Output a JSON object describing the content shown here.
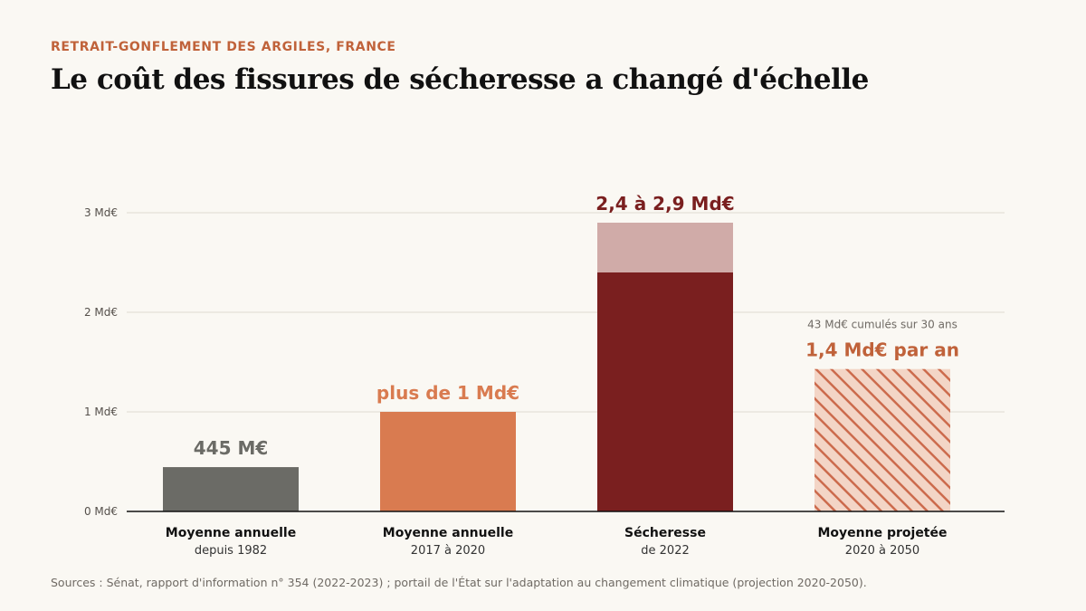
{
  "header": {
    "kicker": "RETRAIT-GONFLEMENT DES ARGILES, FRANCE",
    "title": "Le coût des fissures de sécheresse a changé d'échelle"
  },
  "footer": {
    "source": "Sources : Sénat, rapport d'information n° 354 (2022-2023) ; portail de l'État sur l'adaptation au changement climatique (projection 2020-2050)."
  },
  "chart_data": {
    "type": "bar",
    "ylim": [
      0,
      3
    ],
    "yticks": [
      {
        "value": 0,
        "label": "0 Md€"
      },
      {
        "value": 1,
        "label": "1 Md€"
      },
      {
        "value": 2,
        "label": "2 Md€"
      },
      {
        "value": 3,
        "label": "3 Md€"
      }
    ],
    "grid": true,
    "unit": "Md€",
    "categories": [
      {
        "line1": "Moyenne annuelle",
        "line2": "depuis 1982"
      },
      {
        "line1": "Moyenne annuelle",
        "line2": "2017 à 2020"
      },
      {
        "line1": "Sécheresse",
        "line2": "de 2022"
      },
      {
        "line1": "Moyenne projetée",
        "line2": "2020 à 2050"
      }
    ],
    "bars": [
      {
        "value": 0.445,
        "label": "445 M€",
        "color": "#6b6b66",
        "label_color": "#6b6b66",
        "style": "solid"
      },
      {
        "value": 1.0,
        "label": "plus de 1 Md€",
        "color": "#d97b50",
        "label_color": "#d97b50",
        "style": "solid"
      },
      {
        "value_low": 2.4,
        "value_high": 2.9,
        "label": "2,4 à 2,9 Md€",
        "color": "#7a1f1f",
        "range_color": "#d0aba8",
        "label_color": "#7a1f1f",
        "style": "range"
      },
      {
        "value": 1.43,
        "label": "1,4 Md€ par an",
        "note": "43 Md€ cumulés sur 30 ans",
        "color": "#f3d5c6",
        "hatch_color": "#cc6b4d",
        "label_color": "#c0623a",
        "style": "hatched"
      }
    ]
  }
}
